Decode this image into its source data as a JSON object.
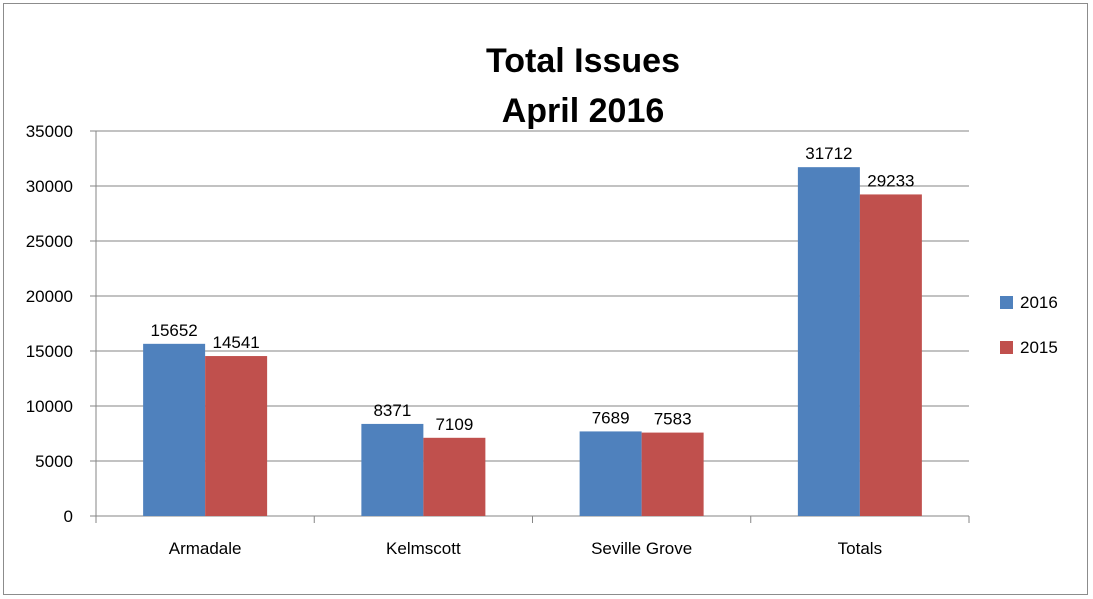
{
  "chart_data": {
    "type": "bar",
    "title_lines": [
      "Total Issues",
      "April 2016"
    ],
    "categories": [
      "Armadale",
      "Kelmscott",
      "Seville Grove",
      "Totals"
    ],
    "series": [
      {
        "name": "2016",
        "color": "#4f81bd",
        "values": [
          15652,
          8371,
          7689,
          31712
        ]
      },
      {
        "name": "2015",
        "color": "#c0504d",
        "values": [
          14541,
          7109,
          7583,
          29233
        ]
      }
    ],
    "y_ticks": [
      "0",
      "5000",
      "10000",
      "15000",
      "20000",
      "25000",
      "30000",
      "35000"
    ],
    "ylim": [
      0,
      35000
    ],
    "grid": true,
    "legend_position": "right"
  }
}
